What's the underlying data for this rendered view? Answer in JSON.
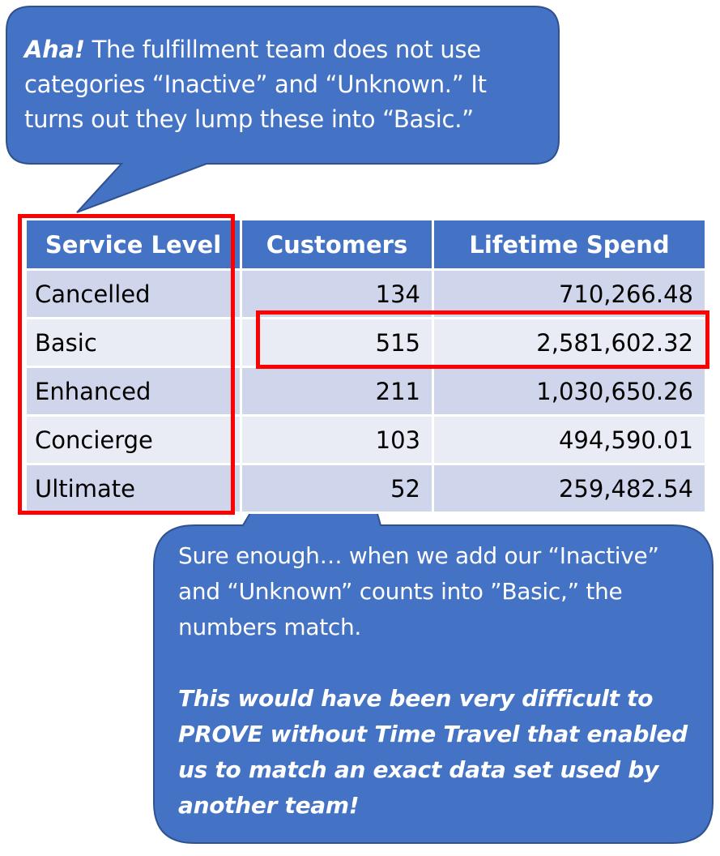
{
  "colors": {
    "callout_fill": "#4472c4",
    "callout_border": "#2f528f",
    "header_fill": "#4472c4",
    "row_band_dark": "#cfd5ea",
    "row_band_light": "#e9ebf5",
    "highlight": "#ff0000"
  },
  "top_callout": {
    "lead": "Aha!",
    "text": "The fulfillment team does not use categories “Inactive” and “Unknown.”  It turns out they lump these into “Basic.”"
  },
  "table": {
    "headers": [
      "Service Level",
      "Customers",
      "Lifetime Spend"
    ],
    "rows": [
      {
        "level": "Cancelled",
        "customers": "134",
        "spend": "710,266.48"
      },
      {
        "level": "Basic",
        "customers": "515",
        "spend": "2,581,602.32"
      },
      {
        "level": "Enhanced",
        "customers": "211",
        "spend": "1,030,650.26"
      },
      {
        "level": "Concierge",
        "customers": "103",
        "spend": "494,590.01"
      },
      {
        "level": "Ultimate",
        "customers": "52",
        "spend": "259,482.54"
      }
    ]
  },
  "bottom_callout": {
    "text": "Sure enough… when we add our “Inactive” and “Unknown” counts into ”Basic,” the numbers match.",
    "emphasis": "This would have been very difficult to PROVE without Time Travel that enabled us to match an exact data set used by another team!"
  }
}
